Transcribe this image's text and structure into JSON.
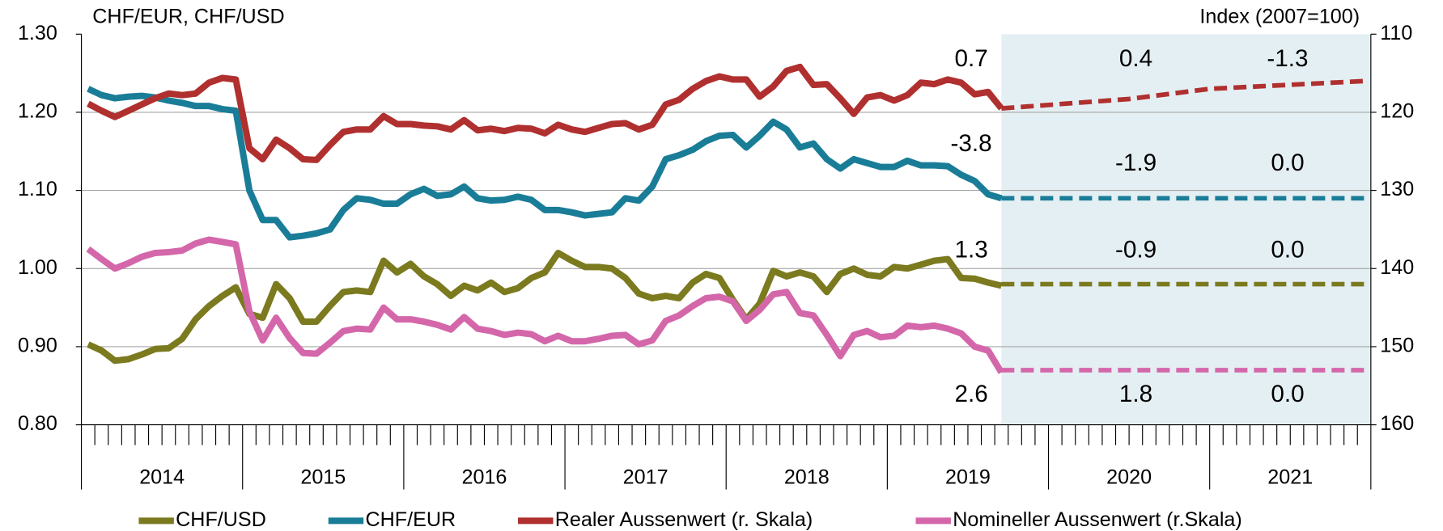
{
  "chart_data": {
    "type": "line",
    "title_left": "CHF/EUR, CHF/USD",
    "title_right": "Index (2007=100)",
    "x": [
      2014.042,
      2014.125,
      2014.208,
      2014.292,
      2014.375,
      2014.458,
      2014.542,
      2014.625,
      2014.708,
      2014.792,
      2014.875,
      2014.958,
      2015.042,
      2015.125,
      2015.208,
      2015.292,
      2015.375,
      2015.458,
      2015.542,
      2015.625,
      2015.708,
      2015.792,
      2015.875,
      2015.958,
      2016.042,
      2016.125,
      2016.208,
      2016.292,
      2016.375,
      2016.458,
      2016.542,
      2016.625,
      2016.708,
      2016.792,
      2016.875,
      2016.958,
      2017.042,
      2017.125,
      2017.208,
      2017.292,
      2017.375,
      2017.458,
      2017.542,
      2017.625,
      2017.708,
      2017.792,
      2017.875,
      2017.958,
      2018.042,
      2018.125,
      2018.208,
      2018.292,
      2018.375,
      2018.458,
      2018.542,
      2018.625,
      2018.708,
      2018.792,
      2018.875,
      2018.958,
      2019.042,
      2019.125,
      2019.208,
      2019.292,
      2019.375,
      2019.458,
      2019.542,
      2019.625,
      2019.708
    ],
    "forecast_x": [
      2019.708,
      2020.5,
      2021.0,
      2021.958
    ],
    "shade_from": 2019.708,
    "shade_color": "#e4eff3",
    "xlim": [
      2014,
      2022
    ],
    "xticks": [
      2014,
      2015,
      2016,
      2017,
      2018,
      2019,
      2020,
      2021,
      2022
    ],
    "categories": [
      "2014",
      "2015",
      "2016",
      "2017",
      "2018",
      "2019",
      "2020",
      "2021"
    ],
    "ylim": [
      0.8,
      1.3
    ],
    "yticks": [
      {
        "value": 0.8,
        "label": "0.80"
      },
      {
        "value": 0.9,
        "label": "0.90"
      },
      {
        "value": 1.0,
        "label": "1.00"
      },
      {
        "value": 1.1,
        "label": "1.10"
      },
      {
        "value": 1.2,
        "label": "1.20"
      },
      {
        "value": 1.3,
        "label": "1.30"
      }
    ],
    "y2lim": [
      110,
      160
    ],
    "y2_inverted": true,
    "y2ticks": [
      110,
      120,
      130,
      140,
      150,
      160
    ],
    "grid": true,
    "legend": "bottom",
    "series": [
      {
        "name": "CHF/USD",
        "color": "#7b7a1f",
        "values": [
          0.903,
          0.895,
          0.882,
          0.884,
          0.89,
          0.897,
          0.898,
          0.91,
          0.935,
          0.952,
          0.965,
          0.976,
          0.942,
          0.937,
          0.98,
          0.962,
          0.932,
          0.932,
          0.952,
          0.97,
          0.972,
          0.97,
          1.01,
          0.995,
          1.006,
          0.99,
          0.98,
          0.965,
          0.978,
          0.972,
          0.982,
          0.97,
          0.975,
          0.988,
          0.995,
          1.02,
          1.01,
          1.002,
          1.002,
          1.0,
          0.988,
          0.968,
          0.962,
          0.965,
          0.962,
          0.982,
          0.993,
          0.988,
          0.96,
          0.935,
          0.955,
          0.997,
          0.99,
          0.995,
          0.99,
          0.97,
          0.993,
          1.0,
          0.992,
          0.99,
          1.002,
          1.0,
          1.005,
          1.01,
          1.012,
          0.988,
          0.987,
          0.982,
          0.978
        ],
        "forecast": [
          0.98,
          0.98,
          0.98,
          0.98
        ],
        "annotations": [
          "1.3",
          "-0.9",
          "0.0"
        ]
      },
      {
        "name": "CHF/EUR",
        "color": "#1a7d98",
        "values": [
          1.23,
          1.222,
          1.218,
          1.22,
          1.221,
          1.219,
          1.215,
          1.212,
          1.208,
          1.208,
          1.204,
          1.202,
          1.1,
          1.062,
          1.062,
          1.04,
          1.042,
          1.045,
          1.05,
          1.075,
          1.09,
          1.088,
          1.083,
          1.083,
          1.095,
          1.102,
          1.093,
          1.095,
          1.105,
          1.09,
          1.087,
          1.088,
          1.092,
          1.088,
          1.075,
          1.075,
          1.072,
          1.068,
          1.07,
          1.072,
          1.09,
          1.087,
          1.105,
          1.14,
          1.145,
          1.152,
          1.163,
          1.17,
          1.171,
          1.155,
          1.17,
          1.188,
          1.178,
          1.155,
          1.16,
          1.14,
          1.128,
          1.14,
          1.135,
          1.13,
          1.13,
          1.138,
          1.132,
          1.132,
          1.131,
          1.12,
          1.112,
          1.095,
          1.09
        ],
        "forecast": [
          1.09,
          1.09,
          1.09,
          1.09
        ],
        "annotations": [
          "-3.8",
          "-1.9",
          "0.0"
        ]
      },
      {
        "name": "Realer Aussenwert (r. Skala)",
        "color": "#b0302f",
        "axis": "y2",
        "values": [
          118.9,
          119.8,
          120.6,
          119.8,
          119.0,
          118.2,
          117.6,
          117.8,
          117.6,
          116.2,
          115.6,
          115.8,
          124.6,
          126.0,
          123.5,
          124.6,
          126.0,
          126.1,
          124.2,
          122.5,
          122.2,
          122.2,
          120.5,
          121.5,
          121.5,
          121.7,
          121.8,
          122.2,
          121.0,
          122.3,
          122.1,
          122.4,
          122.0,
          122.1,
          122.7,
          121.6,
          122.2,
          122.5,
          122.0,
          121.5,
          121.4,
          122.2,
          121.6,
          119.0,
          118.4,
          117.0,
          116.0,
          115.4,
          115.8,
          115.8,
          118.0,
          116.7,
          114.7,
          114.2,
          116.5,
          116.4,
          118.2,
          120.2,
          118.1,
          117.8,
          118.5,
          117.8,
          116.2,
          116.4,
          115.8,
          116.2,
          117.7,
          117.4,
          119.5
        ],
        "forecast": [
          119.5,
          118.3,
          117.0,
          116.0
        ],
        "annotations": [
          "0.7",
          "0.4",
          "-1.3"
        ]
      },
      {
        "name": "Nomineller Aussenwert (r.Skala)",
        "color": "#d467aa",
        "axis": "y2",
        "values": [
          137.5,
          138.8,
          140.0,
          139.3,
          138.5,
          138.0,
          137.9,
          137.7,
          136.8,
          136.3,
          136.6,
          136.9,
          145.5,
          149.2,
          146.3,
          148.9,
          150.8,
          150.9,
          149.5,
          148.0,
          147.7,
          147.8,
          145.0,
          146.5,
          146.5,
          146.8,
          147.2,
          147.8,
          146.2,
          147.7,
          148.0,
          148.5,
          148.2,
          148.4,
          149.3,
          148.6,
          149.3,
          149.3,
          149.0,
          148.6,
          148.5,
          149.7,
          149.2,
          146.7,
          146.0,
          144.8,
          143.8,
          143.6,
          144.2,
          146.7,
          145.3,
          143.3,
          143.0,
          145.7,
          146.0,
          148.5,
          151.2,
          148.5,
          148.0,
          148.8,
          148.6,
          147.3,
          147.5,
          147.3,
          147.7,
          148.3,
          150.0,
          150.5,
          153.3
        ],
        "forecast": [
          153.0,
          153.0,
          153.0,
          153.0
        ],
        "annotations": [
          "2.6",
          "1.8",
          "0.0"
        ]
      }
    ]
  }
}
